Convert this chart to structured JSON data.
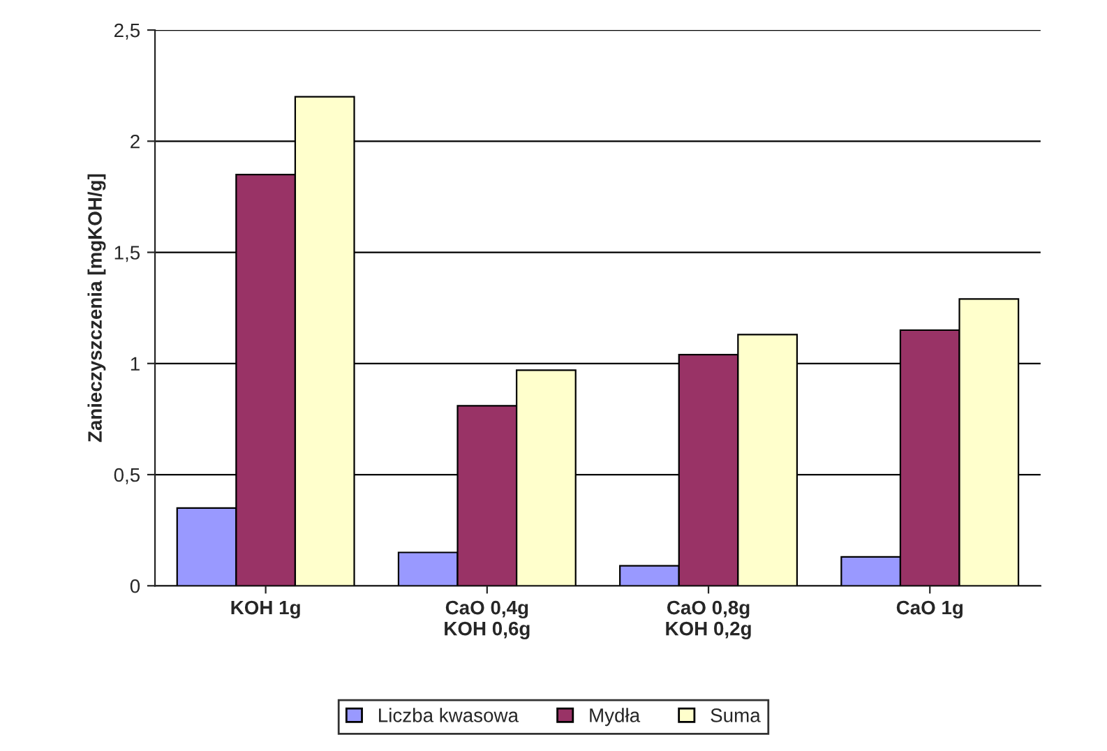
{
  "chart_data": {
    "type": "bar",
    "ylabel": "Zanieczyszczenia [mgKOH/g]",
    "categories": [
      "KOH 1g",
      "CaO 0,4g\nKOH 0,6g",
      "CaO 0,8g\nKOH 0,2g",
      "CaO 1g"
    ],
    "series": [
      {
        "name": "Liczba kwasowa",
        "color": "#9999ff",
        "values": [
          0.35,
          0.15,
          0.09,
          0.13
        ]
      },
      {
        "name": "Mydła",
        "color": "#993366",
        "values": [
          1.85,
          0.81,
          1.04,
          1.15
        ]
      },
      {
        "name": "Suma",
        "color": "#ffffcc",
        "values": [
          2.2,
          0.97,
          1.13,
          1.29
        ]
      }
    ],
    "ylim": [
      0,
      2.5
    ],
    "yticks": [
      0,
      {
        "value": 0.5,
        "label": "0,5"
      },
      1,
      {
        "value": 1.5,
        "label": "1,5"
      },
      2,
      {
        "value": 2.5,
        "label": "2,5"
      }
    ],
    "grid": "y",
    "legend": "bottom"
  }
}
